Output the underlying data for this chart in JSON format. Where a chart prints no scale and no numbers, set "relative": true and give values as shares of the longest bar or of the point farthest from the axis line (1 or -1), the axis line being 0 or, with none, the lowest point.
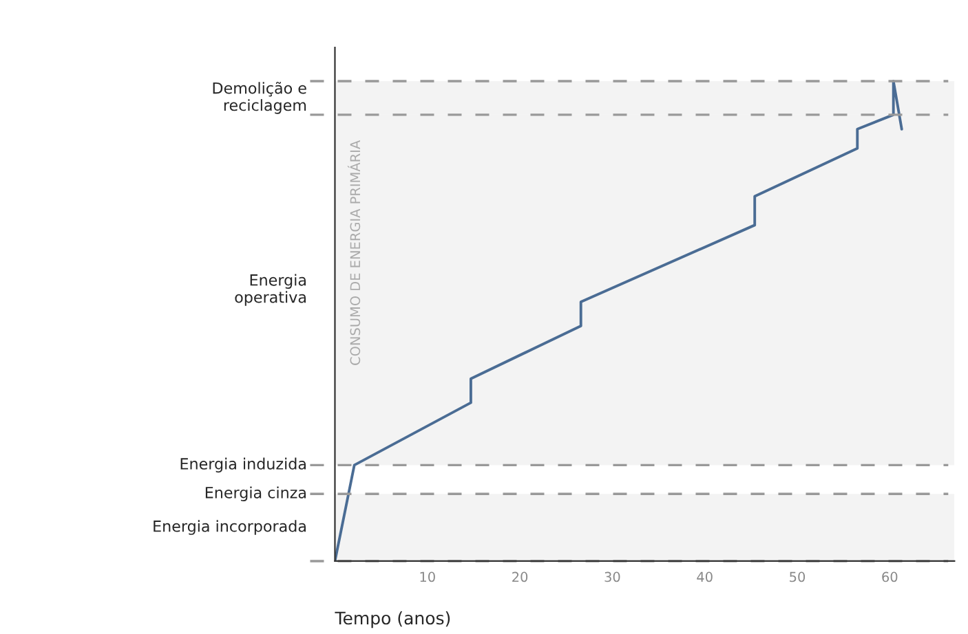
{
  "chart_data": {
    "type": "line",
    "relative": true,
    "xlabel": "Tempo (anos)",
    "ylabel": "CONSUMO DE ENERGIA PRIMÁRIA",
    "xlim": [
      0,
      67
    ],
    "xticks": [
      10,
      20,
      30,
      40,
      50,
      60
    ],
    "series": [
      {
        "color": "#4a6c94",
        "x": [
          0,
          2.1,
          14.7,
          14.7,
          26.6,
          26.6,
          45.4,
          45.4,
          56.5,
          56.5,
          60.4,
          60.4,
          61.3
        ],
        "values": [
          0,
          0.2,
          0.33,
          0.38,
          0.49,
          0.54,
          0.7,
          0.76,
          0.86,
          0.9,
          0.93,
          1.0,
          0.9
        ]
      }
    ],
    "ref_lines": [
      {
        "axis": "y",
        "value": 0,
        "color": "#999999",
        "line_style": "dashed"
      },
      {
        "axis": "y",
        "value": 0.14,
        "label": "Energia cinza",
        "color": "#999999",
        "line_style": "dashed"
      },
      {
        "axis": "y",
        "value": 0.2,
        "label": "Energia induzida",
        "color": "#999999",
        "line_style": "dashed"
      },
      {
        "axis": "y",
        "value": 0.93,
        "color": "#999999",
        "line_style": "dashed"
      },
      {
        "axis": "y",
        "value": 1.0,
        "color": "#999999",
        "line_style": "dashed"
      }
    ],
    "bands": [
      {
        "axis": "y",
        "from": 0,
        "to": 0.14,
        "label": "Energia incorporada",
        "color": "#f3f3f3"
      },
      {
        "axis": "y",
        "from": 0.2,
        "to": 0.93,
        "label": "Energia\noperativa",
        "color": "#f3f3f3"
      },
      {
        "axis": "y",
        "from": 0.93,
        "to": 1.0,
        "label": "Demolição e\nreciclagem",
        "color": "#f3f3f3"
      }
    ],
    "grid": false,
    "legend": false
  }
}
